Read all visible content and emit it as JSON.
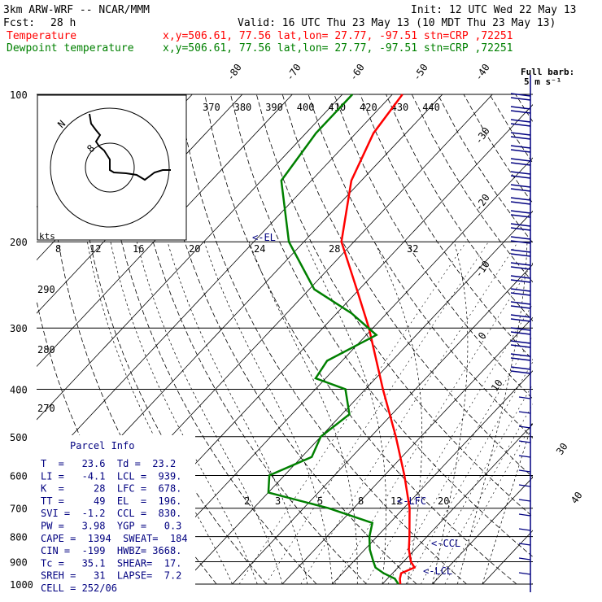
{
  "header": {
    "model": "3km ARW-WRF -- NCAR/MMM",
    "init": "Init: 12 UTC Wed 22 May 13",
    "fcst_label": "Fcst:",
    "fcst_value": "28 h",
    "valid": "Valid: 16 UTC Thu 23 May 13 (10 MDT Thu 23 May 13)",
    "temp_label": "Temperature",
    "dew_label": "Dewpoint temperature",
    "temp_loc": "x,y=506.61, 77.56   lat,lon= 27.77, -97.51   stn=CRP ,72251",
    "dew_loc": "x,y=506.61, 77.56   lat,lon= 27.77, -97.51   stn=CRP ,72251"
  },
  "colors": {
    "temperature": "#ff0000",
    "dewpoint": "#008000",
    "grid": "#000000",
    "label": "#000080"
  },
  "barb_legend": [
    "Full barb:",
    "5 m s⁻¹"
  ],
  "kts_label": "kts",
  "pressure_ticks": [
    "100",
    "200",
    "300",
    "400",
    "500",
    "600",
    "700",
    "800",
    "900",
    "1000"
  ],
  "temp_ticks_top": [
    "-80",
    "-70",
    "-60",
    "-50",
    "-40"
  ],
  "temp_ticks_right": [
    "-30",
    "-20",
    "-10",
    "0",
    "10",
    "30",
    "40"
  ],
  "theta_ticks": [
    "370",
    "380",
    "390",
    "400",
    "410",
    "420",
    "430",
    "440"
  ],
  "theta_left_ticks": [
    "290",
    "280",
    "270"
  ],
  "mixing_ticks_top": [
    "8",
    "12",
    "16",
    "20",
    "24",
    "28",
    "32"
  ],
  "mixing_ticks_low": [
    "2",
    "3",
    "5",
    "8",
    "12",
    "20"
  ],
  "level_markers": {
    "el": "<-EL",
    "lfc": "<-LFC",
    "ccl": "<-CCL",
    "lcl": "<-LCL"
  },
  "hodo_labels": [
    "N",
    "8",
    "2"
  ],
  "parcel_info": {
    "title": "Parcel Info",
    "rows": [
      "T  =   23.6  Td =  23.2",
      "LI =   -4.1  LCL =  939.",
      "K  =     28  LFC =  678.",
      "TT =     49  EL  =  196.",
      "SVI =  -1.2  CCL =  830.",
      "PW =   3.98  YGP =   0.3",
      "CAPE =  1394  SWEAT=  184",
      "CIN =  -199  HWBZ= 3668.",
      "Tc =   35.1  SHEAR=  17.",
      "SREH =   31  LAPSE=  7.2",
      "CELL = 252/06"
    ]
  },
  "chart_data": {
    "type": "line",
    "diagram": "skew-T log-P",
    "y_axis": "pressure (hPa)",
    "ylim": [
      1000,
      100
    ],
    "series": [
      {
        "name": "Temperature",
        "points": [
          [
            1000,
            23.6
          ],
          [
            975,
            22.5
          ],
          [
            950,
            21.7
          ],
          [
            925,
            23.3
          ],
          [
            900,
            21.5
          ],
          [
            850,
            18.8
          ],
          [
            800,
            16.5
          ],
          [
            700,
            11.2
          ],
          [
            600,
            4.0
          ],
          [
            500,
            -5.0
          ],
          [
            400,
            -16.5
          ],
          [
            300,
            -30.8
          ],
          [
            250,
            -40.5
          ],
          [
            200,
            -52.5
          ],
          [
            150,
            -62.0
          ],
          [
            120,
            -66.5
          ],
          [
            100,
            -68.0
          ]
        ]
      },
      {
        "name": "Dewpoint temperature",
        "points": [
          [
            1000,
            23.2
          ],
          [
            975,
            21.5
          ],
          [
            950,
            18.2
          ],
          [
            925,
            15.5
          ],
          [
            900,
            14.0
          ],
          [
            850,
            11.0
          ],
          [
            800,
            8.5
          ],
          [
            750,
            6.5
          ],
          [
            700,
            -5.0
          ],
          [
            650,
            -20.0
          ],
          [
            600,
            -23.0
          ],
          [
            550,
            -18.0
          ],
          [
            500,
            -20.0
          ],
          [
            450,
            -18.5
          ],
          [
            400,
            -24.0
          ],
          [
            380,
            -32.0
          ],
          [
            350,
            -33.0
          ],
          [
            310,
            -28.0
          ],
          [
            280,
            -37.0
          ],
          [
            250,
            -49.0
          ],
          [
            200,
            -63.0
          ],
          [
            150,
            -76.0
          ],
          [
            120,
            -78.0
          ],
          [
            100,
            -78.0
          ]
        ]
      }
    ]
  }
}
